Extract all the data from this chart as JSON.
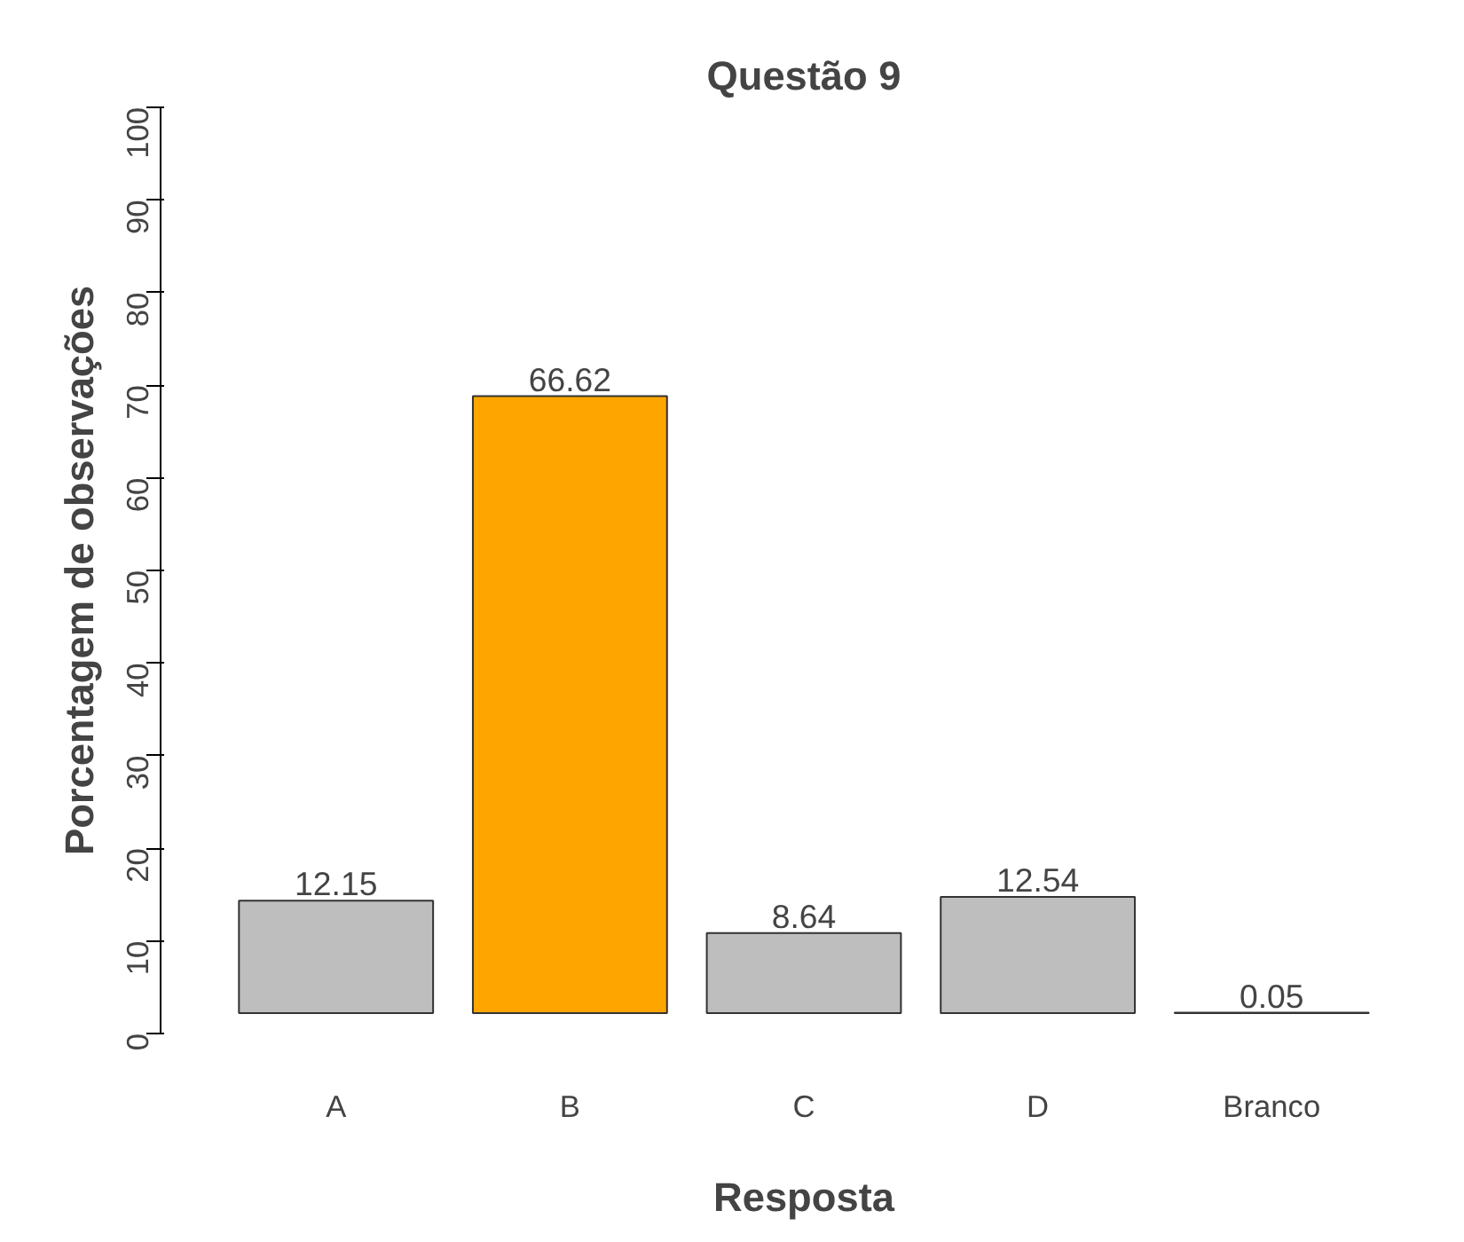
{
  "chart_data": {
    "type": "bar",
    "title": "Questão 9",
    "xlabel": "Resposta",
    "ylabel": "Porcentagem de observações",
    "categories": [
      "A",
      "B",
      "C",
      "D",
      "Branco"
    ],
    "values": [
      12.15,
      66.62,
      8.64,
      12.54,
      0.05
    ],
    "base": [
      2.2,
      2.2,
      2.2,
      2.2,
      2.2
    ],
    "colors": [
      "#bebebe",
      "#ffa500",
      "#bebebe",
      "#bebebe",
      "#bebebe"
    ],
    "ylim": [
      0,
      100
    ],
    "yticks": [
      0,
      10,
      20,
      30,
      40,
      50,
      60,
      70,
      80,
      90,
      100
    ],
    "data_labels": true,
    "grid": false
  }
}
